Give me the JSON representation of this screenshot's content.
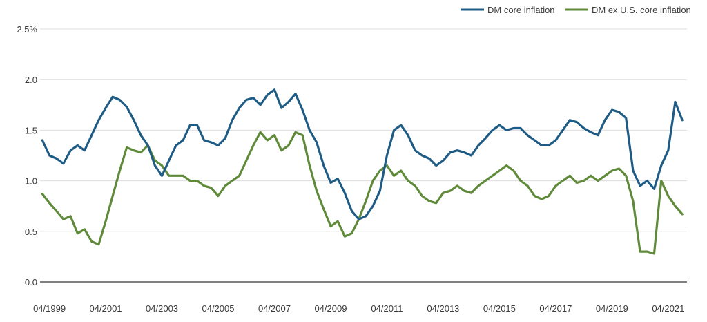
{
  "chart_data": {
    "type": "line",
    "title": "",
    "xlabel": "",
    "ylabel": "",
    "y_tick_labels": [
      "0.0",
      "0.5",
      "1.0",
      "1.5",
      "2.0",
      "2.5%"
    ],
    "y_ticks": [
      0.0,
      0.5,
      1.0,
      1.5,
      2.0,
      2.5
    ],
    "ylim": [
      0,
      2.5
    ],
    "x_tick_labels": [
      "04/1999",
      "04/2001",
      "04/2003",
      "04/2005",
      "04/2007",
      "04/2009",
      "04/2011",
      "04/2013",
      "04/2015",
      "04/2017",
      "04/2019",
      "04/2021"
    ],
    "xlim": [
      "1998-12",
      "2021-12"
    ],
    "grid": true,
    "legend_position": "top-right",
    "colors": {
      "dm_core": "#1f5c85",
      "dm_ex_us": "#5f8a3a",
      "grid": "#dddddd",
      "axis": "#333333"
    },
    "series": [
      {
        "name": "DM core inflation",
        "color": "#1f5c85",
        "x": [
          "1999-01",
          "1999-04",
          "1999-07",
          "1999-10",
          "2000-01",
          "2000-04",
          "2000-07",
          "2000-10",
          "2001-01",
          "2001-04",
          "2001-07",
          "2001-10",
          "2002-01",
          "2002-04",
          "2002-07",
          "2002-10",
          "2003-01",
          "2003-04",
          "2003-07",
          "2003-10",
          "2004-01",
          "2004-04",
          "2004-07",
          "2004-10",
          "2005-01",
          "2005-04",
          "2005-07",
          "2005-10",
          "2006-01",
          "2006-04",
          "2006-07",
          "2006-10",
          "2007-01",
          "2007-04",
          "2007-07",
          "2007-10",
          "2008-01",
          "2008-04",
          "2008-07",
          "2008-10",
          "2009-01",
          "2009-04",
          "2009-07",
          "2009-10",
          "2010-01",
          "2010-04",
          "2010-07",
          "2010-10",
          "2011-01",
          "2011-04",
          "2011-07",
          "2011-10",
          "2012-01",
          "2012-04",
          "2012-07",
          "2012-10",
          "2013-01",
          "2013-04",
          "2013-07",
          "2013-10",
          "2014-01",
          "2014-04",
          "2014-07",
          "2014-10",
          "2015-01",
          "2015-04",
          "2015-07",
          "2015-10",
          "2016-01",
          "2016-04",
          "2016-07",
          "2016-10",
          "2017-01",
          "2017-04",
          "2017-07",
          "2017-10",
          "2018-01",
          "2018-04",
          "2018-07",
          "2018-10",
          "2019-01",
          "2019-04",
          "2019-07",
          "2019-10",
          "2020-01",
          "2020-04",
          "2020-07",
          "2020-10",
          "2021-01",
          "2021-04",
          "2021-07",
          "2021-10"
        ],
        "values": [
          1.4,
          1.25,
          1.22,
          1.17,
          1.3,
          1.35,
          1.3,
          1.45,
          1.6,
          1.72,
          1.83,
          1.8,
          1.73,
          1.6,
          1.45,
          1.35,
          1.15,
          1.05,
          1.2,
          1.35,
          1.4,
          1.55,
          1.55,
          1.4,
          1.38,
          1.35,
          1.42,
          1.6,
          1.72,
          1.8,
          1.82,
          1.75,
          1.85,
          1.9,
          1.72,
          1.78,
          1.86,
          1.7,
          1.5,
          1.38,
          1.15,
          0.98,
          1.02,
          0.88,
          0.7,
          0.62,
          0.65,
          0.75,
          0.9,
          1.25,
          1.5,
          1.55,
          1.45,
          1.3,
          1.25,
          1.22,
          1.15,
          1.2,
          1.28,
          1.3,
          1.28,
          1.25,
          1.35,
          1.42,
          1.5,
          1.55,
          1.5,
          1.52,
          1.52,
          1.45,
          1.4,
          1.35,
          1.35,
          1.4,
          1.5,
          1.6,
          1.58,
          1.52,
          1.48,
          1.45,
          1.6,
          1.7,
          1.68,
          1.62,
          1.1,
          0.95,
          1.0,
          0.92,
          1.15,
          1.3,
          1.78,
          1.6
        ]
      },
      {
        "name": "DM ex U.S. core inflation",
        "color": "#5f8a3a",
        "x": [
          "1999-01",
          "1999-04",
          "1999-07",
          "1999-10",
          "2000-01",
          "2000-04",
          "2000-07",
          "2000-10",
          "2001-01",
          "2001-04",
          "2001-07",
          "2001-10",
          "2002-01",
          "2002-04",
          "2002-07",
          "2002-10",
          "2003-01",
          "2003-04",
          "2003-07",
          "2003-10",
          "2004-01",
          "2004-04",
          "2004-07",
          "2004-10",
          "2005-01",
          "2005-04",
          "2005-07",
          "2005-10",
          "2006-01",
          "2006-04",
          "2006-07",
          "2006-10",
          "2007-01",
          "2007-04",
          "2007-07",
          "2007-10",
          "2008-01",
          "2008-04",
          "2008-07",
          "2008-10",
          "2009-01",
          "2009-04",
          "2009-07",
          "2009-10",
          "2010-01",
          "2010-04",
          "2010-07",
          "2010-10",
          "2011-01",
          "2011-04",
          "2011-07",
          "2011-10",
          "2012-01",
          "2012-04",
          "2012-07",
          "2012-10",
          "2013-01",
          "2013-04",
          "2013-07",
          "2013-10",
          "2014-01",
          "2014-04",
          "2014-07",
          "2014-10",
          "2015-01",
          "2015-04",
          "2015-07",
          "2015-10",
          "2016-01",
          "2016-04",
          "2016-07",
          "2016-10",
          "2017-01",
          "2017-04",
          "2017-07",
          "2017-10",
          "2018-01",
          "2018-04",
          "2018-07",
          "2018-10",
          "2019-01",
          "2019-04",
          "2019-07",
          "2019-10",
          "2020-01",
          "2020-04",
          "2020-07",
          "2020-10",
          "2021-01",
          "2021-04",
          "2021-07",
          "2021-10"
        ],
        "values": [
          0.87,
          0.78,
          0.7,
          0.62,
          0.65,
          0.48,
          0.52,
          0.4,
          0.37,
          0.6,
          0.85,
          1.1,
          1.33,
          1.3,
          1.28,
          1.35,
          1.2,
          1.15,
          1.05,
          1.05,
          1.05,
          1.0,
          1.0,
          0.95,
          0.93,
          0.85,
          0.95,
          1.0,
          1.05,
          1.2,
          1.35,
          1.48,
          1.4,
          1.45,
          1.3,
          1.35,
          1.48,
          1.45,
          1.15,
          0.9,
          0.72,
          0.55,
          0.6,
          0.45,
          0.48,
          0.62,
          0.8,
          1.0,
          1.1,
          1.15,
          1.05,
          1.1,
          1.0,
          0.95,
          0.85,
          0.8,
          0.78,
          0.88,
          0.9,
          0.95,
          0.9,
          0.88,
          0.95,
          1.0,
          1.05,
          1.1,
          1.15,
          1.1,
          1.0,
          0.95,
          0.85,
          0.82,
          0.85,
          0.95,
          1.0,
          1.05,
          0.98,
          1.0,
          1.05,
          1.0,
          1.05,
          1.1,
          1.12,
          1.05,
          0.8,
          0.3,
          0.3,
          0.28,
          1.0,
          0.85,
          0.75,
          0.67
        ]
      }
    ]
  }
}
